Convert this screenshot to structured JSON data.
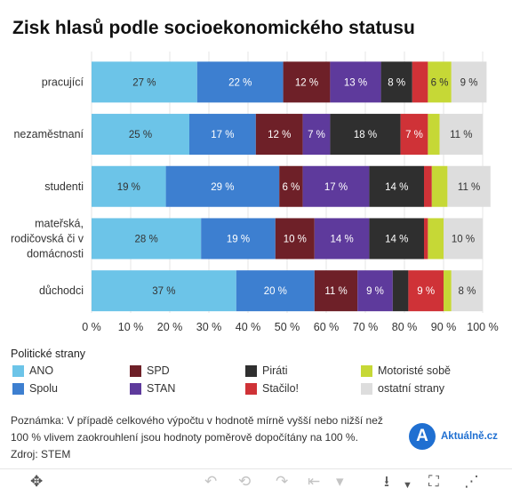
{
  "title": "Zisk hlasů podle socioekonomického statusu",
  "chart_data": {
    "type": "bar",
    "stacked": true,
    "orientation": "horizontal",
    "categories": [
      [
        "pracující"
      ],
      [
        "nezaměstnaní"
      ],
      [
        "studenti"
      ],
      [
        "mateřská,",
        "rodičovská či v",
        "domácnosti"
      ],
      [
        "důchodci"
      ]
    ],
    "series": [
      {
        "name": "ANO",
        "color": "#6cc4e8",
        "values": [
          27,
          25,
          19,
          28,
          37
        ]
      },
      {
        "name": "Spolu",
        "color": "#3d7fd0",
        "values": [
          22,
          17,
          29,
          19,
          20
        ]
      },
      {
        "name": "SPD",
        "color": "#6e2028",
        "values": [
          12,
          12,
          6,
          10,
          11
        ]
      },
      {
        "name": "STAN",
        "color": "#5e3a9c",
        "values": [
          13,
          7,
          17,
          14,
          9
        ]
      },
      {
        "name": "Piráti",
        "color": "#2f2f2f",
        "values": [
          8,
          18,
          14,
          14,
          4
        ]
      },
      {
        "name": "Stačilo!",
        "color": "#cf3237",
        "values": [
          4,
          7,
          2,
          1,
          9
        ]
      },
      {
        "name": "Motoristé sobě",
        "color": "#c6d836",
        "values": [
          6,
          3,
          4,
          4,
          2
        ]
      },
      {
        "name": "ostatní strany",
        "color": "#dddddd",
        "values": [
          9,
          11,
          11,
          10,
          8
        ]
      }
    ],
    "xlim": [
      0,
      100
    ],
    "xticks": [
      "0 %",
      "10 %",
      "20 %",
      "30 %",
      "40 %",
      "50 %",
      "60 %",
      "70 %",
      "80 %",
      "90 %",
      "100 %"
    ],
    "label_suffix": " %",
    "min_label_value": 5,
    "grid": true,
    "legend_position": "bottom",
    "xlabel": "",
    "ylabel": ""
  },
  "legend": {
    "title": "Politické strany"
  },
  "note": {
    "line1": "Poznámka: V případě celkového výpočtu v hodnotě mírně vyšší nebo nižší než",
    "line2": "100 % vlivem zaokrouhlení jsou hodnoty poměrově dopočítány na 100 %.",
    "line3": "Zdroj: STEM"
  },
  "brand": {
    "logo": "A",
    "name": "Aktuálně.cz"
  },
  "toolbar": {
    "icons": [
      "move-icon",
      "undo-icon",
      "undo-all-icon",
      "redo-icon",
      "reset-icon",
      "download-icon",
      "fullscreen-icon",
      "share-icon"
    ]
  }
}
